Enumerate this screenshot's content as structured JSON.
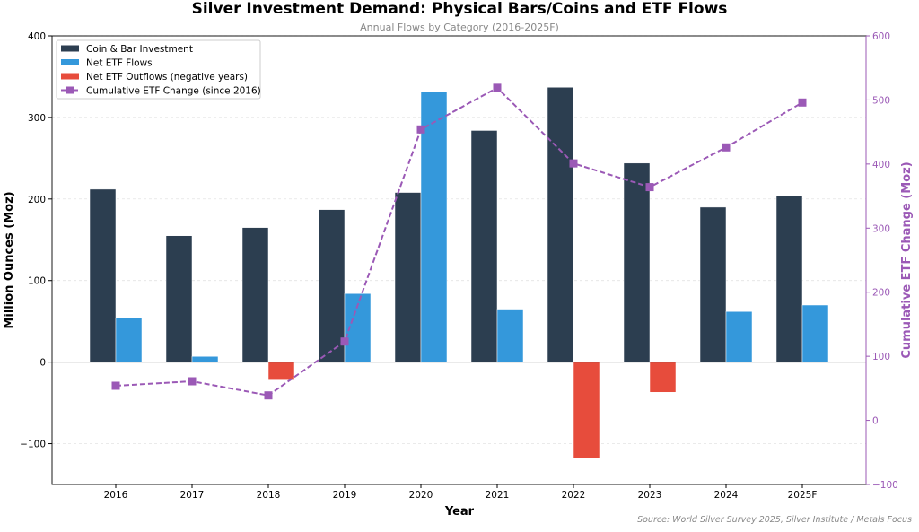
{
  "chart_data": {
    "type": "bar",
    "title": "Silver Investment Demand: Physical Bars/Coins and ETF Flows",
    "subtitle": "Annual Flows by Category (2016-2025F)",
    "xlabel": "Year",
    "ylabel": "Million Ounces (Moz)",
    "y2label": "Cumulative ETF Change (Moz)",
    "source": "Source: World Silver Survey 2025, Silver Institute / Metals Focus",
    "categories": [
      "2016",
      "2017",
      "2018",
      "2019",
      "2020",
      "2021",
      "2022",
      "2023",
      "2024",
      "2025F"
    ],
    "ylim": [
      -150,
      400
    ],
    "yticks": [
      -100,
      0,
      100,
      200,
      300,
      400
    ],
    "y2lim": [
      -100,
      600
    ],
    "y2ticks": [
      -100,
      0,
      100,
      200,
      300,
      400,
      500,
      600
    ],
    "grid": true,
    "legend_placement": "top-left",
    "series": [
      {
        "name": "Coin & Bar Investment",
        "type": "bar",
        "axis": "left",
        "color": "#2c3e50",
        "values": [
          212,
          155,
          165,
          187,
          208,
          284,
          337,
          244,
          190,
          204
        ]
      },
      {
        "name": "Net ETF Flows",
        "type": "bar",
        "axis": "left",
        "color": "#3498db",
        "negative_color": "#e74c3c",
        "values": [
          54,
          7,
          -22,
          84,
          331,
          65,
          -118,
          -37,
          62,
          70
        ]
      },
      {
        "name": "Net ETF Outflows (negative years)",
        "type": "legend-only",
        "color": "#e74c3c"
      },
      {
        "name": "Cumulative ETF Change (since 2016)",
        "type": "line",
        "axis": "right",
        "color": "#9b59b6",
        "line_style": "dashed",
        "marker": "square",
        "values": [
          54,
          61,
          39,
          123,
          454,
          519,
          401,
          364,
          426,
          496
        ]
      }
    ]
  }
}
